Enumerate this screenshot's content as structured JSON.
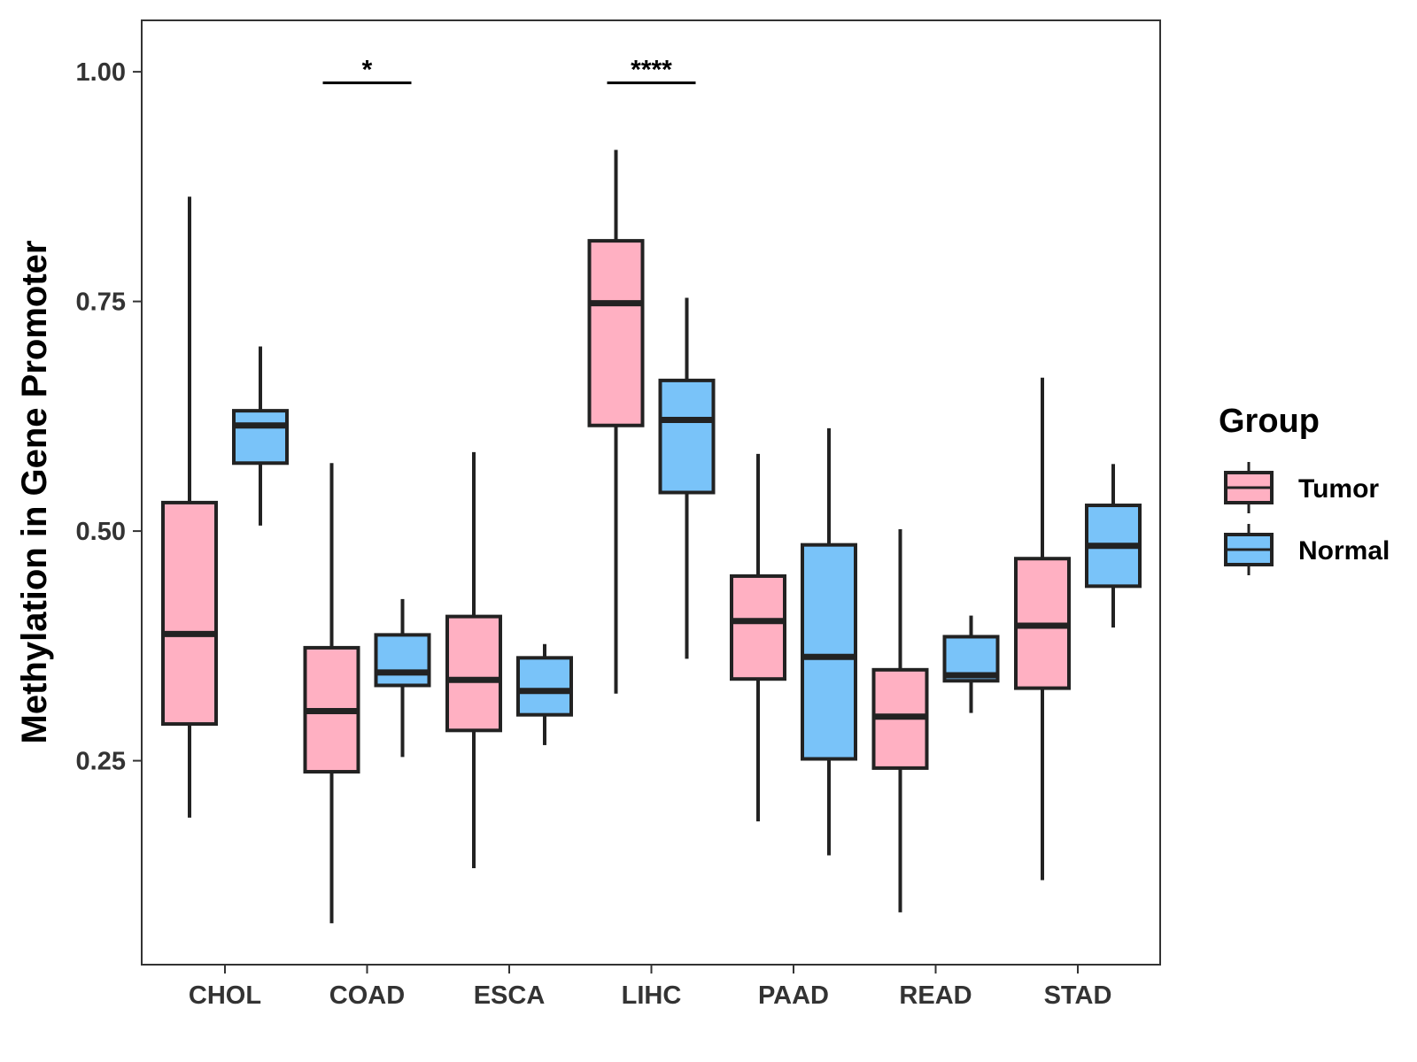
{
  "chart_data": {
    "type": "boxplot",
    "title": "",
    "xlabel": "",
    "ylabel": "Methylation in Gene Promoter",
    "ylim": [
      0.028,
      1.056
    ],
    "y_ticks": [
      0.25,
      0.5,
      0.75,
      1.0
    ],
    "y_tick_labels": [
      "0.25",
      "0.50",
      "0.75",
      "1.00"
    ],
    "categories": [
      "CHOL",
      "COAD",
      "ESCA",
      "LIHC",
      "PAAD",
      "READ",
      "STAD"
    ],
    "legend": {
      "title": "Group",
      "position": "right",
      "entries": [
        {
          "name": "Tumor",
          "color": "#FFB0C2"
        },
        {
          "name": "Normal",
          "color": "#79C3F9"
        }
      ]
    },
    "series": [
      {
        "name": "Tumor",
        "color": "#FFB0C2",
        "boxes": [
          {
            "category": "CHOL",
            "min": 0.188,
            "q1": 0.29,
            "median": 0.388,
            "q3": 0.531,
            "max": 0.864
          },
          {
            "category": "COAD",
            "min": 0.073,
            "q1": 0.238,
            "median": 0.304,
            "q3": 0.373,
            "max": 0.574
          },
          {
            "category": "ESCA",
            "min": 0.133,
            "q1": 0.283,
            "median": 0.338,
            "q3": 0.407,
            "max": 0.586
          },
          {
            "category": "LIHC",
            "min": 0.323,
            "q1": 0.615,
            "median": 0.748,
            "q3": 0.816,
            "max": 0.915
          },
          {
            "category": "PAAD",
            "min": 0.184,
            "q1": 0.339,
            "median": 0.402,
            "q3": 0.451,
            "max": 0.584
          },
          {
            "category": "READ",
            "min": 0.085,
            "q1": 0.242,
            "median": 0.298,
            "q3": 0.349,
            "max": 0.502
          },
          {
            "category": "STAD",
            "min": 0.12,
            "q1": 0.329,
            "median": 0.397,
            "q3": 0.47,
            "max": 0.667
          }
        ]
      },
      {
        "name": "Normal",
        "color": "#79C3F9",
        "boxes": [
          {
            "category": "CHOL",
            "min": 0.506,
            "q1": 0.574,
            "median": 0.615,
            "q3": 0.631,
            "max": 0.701
          },
          {
            "category": "COAD",
            "min": 0.254,
            "q1": 0.332,
            "median": 0.346,
            "q3": 0.387,
            "max": 0.426
          },
          {
            "category": "ESCA",
            "min": 0.267,
            "q1": 0.3,
            "median": 0.326,
            "q3": 0.362,
            "max": 0.377
          },
          {
            "category": "LIHC",
            "min": 0.361,
            "q1": 0.542,
            "median": 0.621,
            "q3": 0.664,
            "max": 0.754
          },
          {
            "category": "PAAD",
            "min": 0.147,
            "q1": 0.252,
            "median": 0.363,
            "q3": 0.485,
            "max": 0.612
          },
          {
            "category": "READ",
            "min": 0.302,
            "q1": 0.337,
            "median": 0.343,
            "q3": 0.385,
            "max": 0.408
          },
          {
            "category": "STAD",
            "min": 0.395,
            "q1": 0.44,
            "median": 0.484,
            "q3": 0.528,
            "max": 0.573
          }
        ]
      }
    ],
    "annotations": [
      {
        "category": "COAD",
        "label": "*",
        "y": 0.988
      },
      {
        "category": "LIHC",
        "label": "****",
        "y": 0.988
      }
    ],
    "grid": false
  }
}
